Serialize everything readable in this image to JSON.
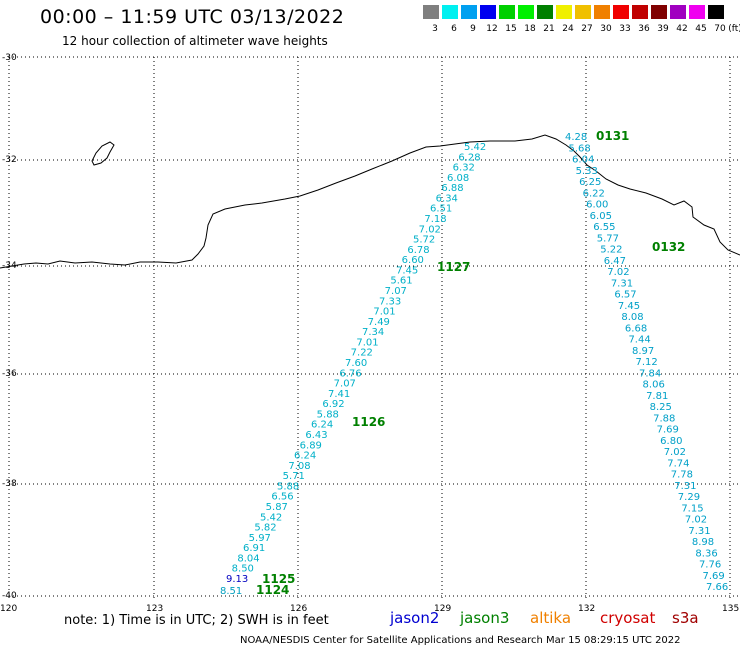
{
  "title": "00:00 – 11:59 UTC 03/13/2022",
  "subtitle": "12 hour collection of altimeter wave heights",
  "colorbar": {
    "unit": "(ft)",
    "colors": [
      "#7f7f7f",
      "#00f0f0",
      "#00a0f0",
      "#0000f0",
      "#00d000",
      "#00f000",
      "#008000",
      "#f0f000",
      "#f0c000",
      "#f08000",
      "#f00000",
      "#c00000",
      "#800000",
      "#a000c0",
      "#f000f0",
      "#000000"
    ],
    "labels": [
      "3",
      "6",
      "9",
      "12",
      "15",
      "18",
      "21",
      "24",
      "27",
      "30",
      "33",
      "36",
      "39",
      "42",
      "45",
      "70"
    ]
  },
  "lat_labels": [
    "-30",
    "-32",
    "-34",
    "-36",
    "-38",
    "-40"
  ],
  "lon_labels": [
    "120",
    "123",
    "126",
    "129",
    "132",
    "135"
  ],
  "passes": [
    {
      "time": "1125",
      "time_color": "#008000"
    },
    {
      "time": "1124",
      "time_color": "#008000"
    },
    {
      "time": "1126",
      "time_color": "#008000"
    },
    {
      "time": "1127",
      "time_color": "#008000"
    },
    {
      "time": "0131",
      "time_color": "#008000"
    },
    {
      "time": "0132",
      "time_color": "#008000"
    }
  ],
  "track_a": [
    "5.42",
    "6.28",
    "6.32",
    "6.08",
    "6.88",
    "6.34",
    "6.51",
    "7.18",
    "7.02",
    "5.72",
    "6.78",
    "6.60",
    "7.45",
    "5.61",
    "7.07",
    "7.33",
    "7.01",
    "7.49",
    "7.34",
    "7.01",
    "7.22",
    "7.60",
    "6.76",
    "7.07",
    "7.41",
    "6.92",
    "5.88",
    "6.24",
    "6.43",
    "6.89",
    "6.24",
    "7.08",
    "5.71",
    "5.88",
    "6.56",
    "5.87",
    "5.42",
    "5.82",
    "5.97",
    "6.91",
    "8.04",
    "8.50",
    "9.13"
  ],
  "track_b": [
    "8.51"
  ],
  "track_c": [
    "4.28",
    "5.68",
    "6.04",
    "5.33",
    "6.25",
    "6.22",
    "6.00",
    "6.05",
    "6.55",
    "5.77",
    "5.22",
    "6.47",
    "7.02",
    "7.31",
    "6.57",
    "7.45",
    "8.08",
    "6.68",
    "7.44",
    "8.97",
    "7.12",
    "7.84",
    "8.06",
    "7.81",
    "8.25",
    "7.88",
    "7.69",
    "6.80",
    "7.02",
    "7.74",
    "7.78",
    "7.31",
    "7.29",
    "7.15",
    "7.02",
    "7.31",
    "8.98",
    "8.36",
    "7.76",
    "7.69",
    "7.66"
  ],
  "note": "note: 1) Time is in UTC; 2) SWH is in feet",
  "satellites": [
    {
      "name": "jason2",
      "color": "#0000d0"
    },
    {
      "name": "jason3",
      "color": "#008000"
    },
    {
      "name": "altika",
      "color": "#f08000"
    },
    {
      "name": "cryosat",
      "color": "#d00000"
    },
    {
      "name": "s3a",
      "color": "#a00000"
    }
  ],
  "credit": "NOAA/NESDIS Center for Satellite Applications and Research   Mar 15 08:29:15 UTC 2022"
}
